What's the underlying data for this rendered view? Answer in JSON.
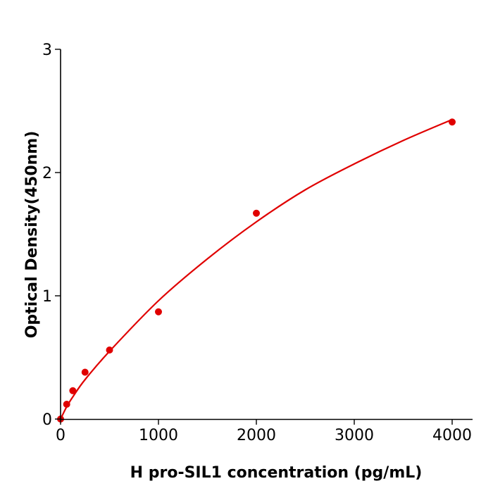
{
  "chart_data": {
    "type": "scatter",
    "title": "",
    "xlabel": "H  pro-SIL1 concentration (pg/mL)",
    "ylabel": "Optical Density(450nm)",
    "xlim": [
      0,
      4200
    ],
    "ylim": [
      0,
      3
    ],
    "xticks": [
      "0",
      "1000",
      "2000",
      "3000",
      "4000"
    ],
    "yticks": [
      "0",
      "1",
      "2",
      "3"
    ],
    "grid": false,
    "color": "#e00000",
    "points": {
      "x": [
        0,
        62.5,
        125,
        250,
        500,
        1000,
        2000,
        4000
      ],
      "y": [
        0.0,
        0.12,
        0.23,
        0.38,
        0.56,
        0.87,
        1.67,
        2.41
      ]
    },
    "fit_curve": {
      "x": [
        0,
        62.5,
        125,
        250,
        500,
        1000,
        1500,
        2000,
        2500,
        3000,
        3500,
        4000
      ],
      "y": [
        0.0,
        0.1,
        0.18,
        0.32,
        0.55,
        0.96,
        1.3,
        1.6,
        1.86,
        2.07,
        2.26,
        2.43
      ]
    }
  }
}
